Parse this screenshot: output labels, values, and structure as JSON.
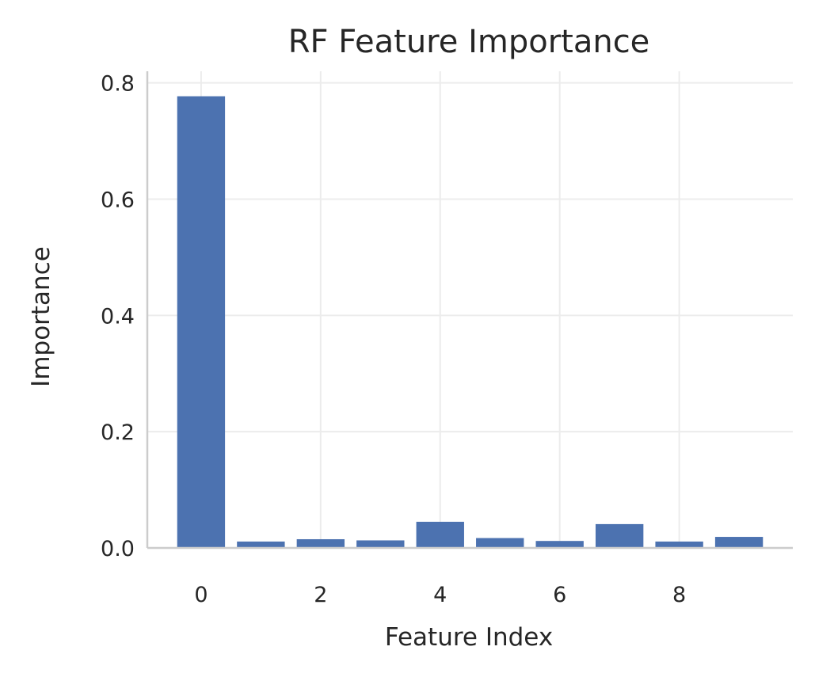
{
  "chart_data": {
    "type": "bar",
    "title": "RF Feature Importance",
    "xlabel": "Feature Index",
    "ylabel": "Importance",
    "x": [
      0,
      1,
      2,
      3,
      4,
      5,
      6,
      7,
      8,
      9
    ],
    "values": [
      0.777,
      0.011,
      0.015,
      0.013,
      0.045,
      0.017,
      0.012,
      0.041,
      0.011,
      0.019
    ],
    "xlim": [
      -0.9,
      9.9
    ],
    "ylim": [
      0,
      0.82
    ],
    "xticks": [
      0,
      2,
      4,
      6,
      8
    ],
    "yticks": [
      0.0,
      0.2,
      0.4,
      0.6,
      0.8
    ],
    "xtick_labels": [
      "0",
      "2",
      "4",
      "6",
      "8"
    ],
    "ytick_labels": [
      "0.0",
      "0.2",
      "0.4",
      "0.6",
      "0.8"
    ],
    "grid": true,
    "bar_color": "#4c72b0",
    "grid_color": "#ececec",
    "spine_color": "#cccccc"
  }
}
